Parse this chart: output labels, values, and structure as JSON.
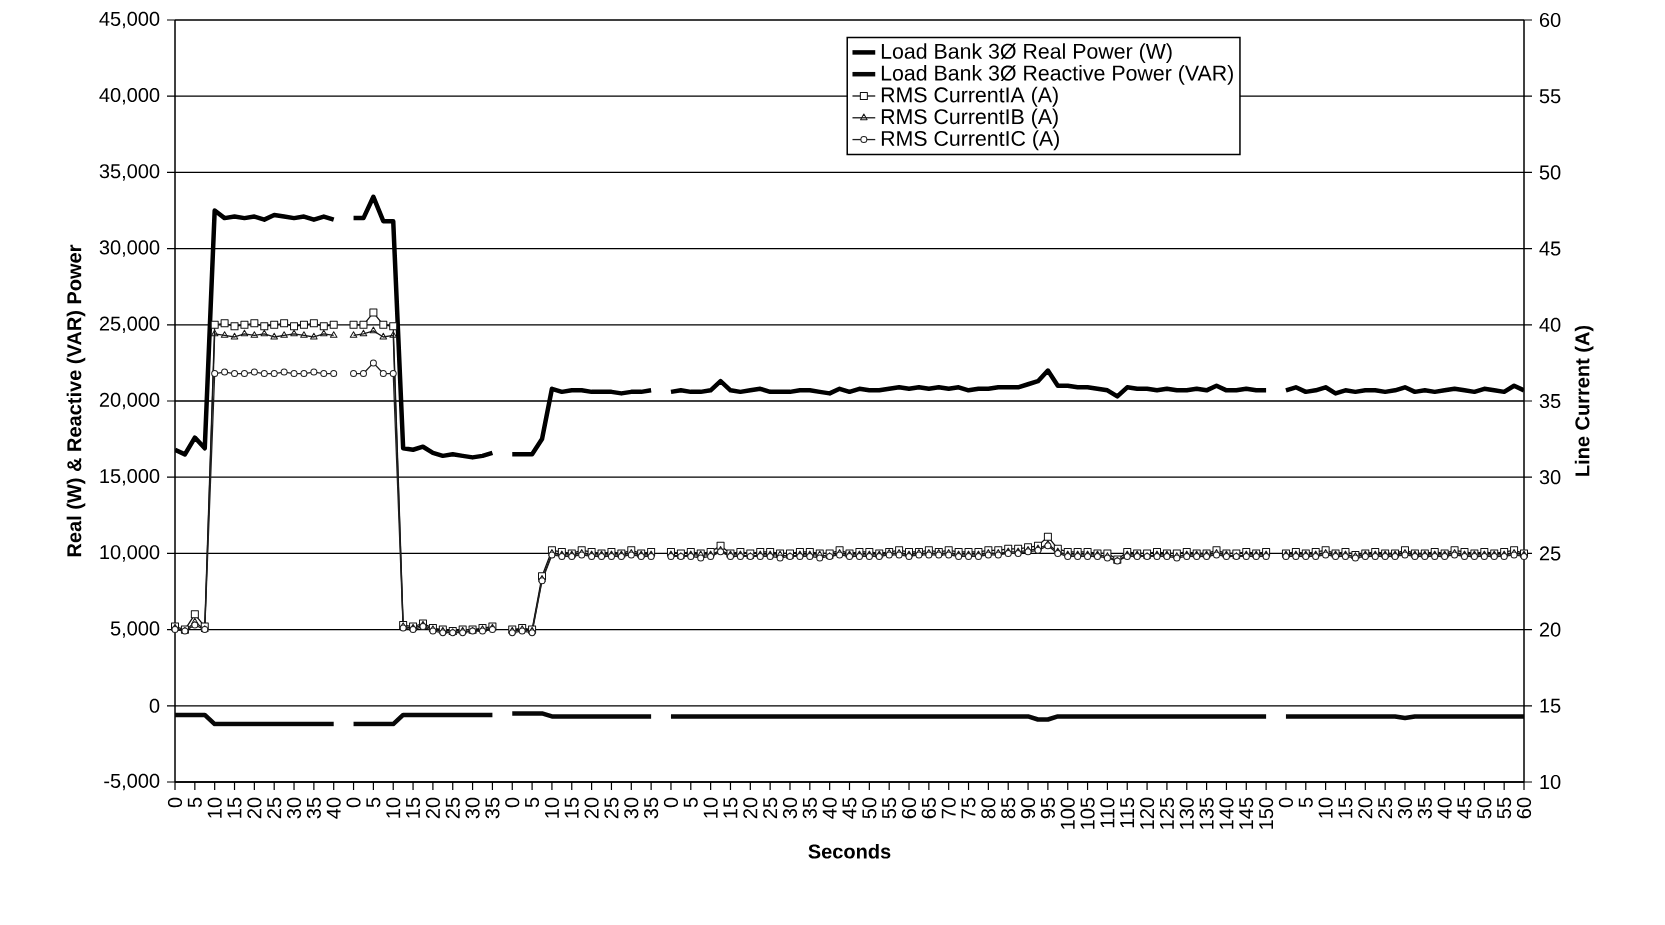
{
  "chart_data": {
    "type": "line",
    "xlabel": "Seconds",
    "ylabel": "Real (W) & Reactive (VAR) Power",
    "y2label": "Line Current (A)",
    "categories": [
      "0",
      null,
      "5",
      null,
      "10",
      null,
      "15",
      null,
      "20",
      null,
      "25",
      null,
      "30",
      null,
      "35",
      null,
      "40",
      null,
      "0",
      null,
      "5",
      null,
      "10",
      null,
      "15",
      null,
      "20",
      null,
      "25",
      null,
      "30",
      null,
      "35",
      null,
      "0",
      null,
      "5",
      null,
      "10",
      null,
      "15",
      null,
      "20",
      null,
      "25",
      null,
      "30",
      null,
      "35",
      null,
      "0",
      null,
      "5",
      null,
      "10",
      null,
      "15",
      null,
      "20",
      null,
      "25",
      null,
      "30",
      null,
      "35",
      null,
      "40",
      null,
      "45",
      null,
      "50",
      null,
      "55",
      null,
      "60",
      null,
      "65",
      null,
      "70",
      null,
      "75",
      null,
      "80",
      null,
      "85",
      null,
      "90",
      null,
      "95",
      null,
      "100",
      null,
      "105",
      null,
      "110",
      null,
      "115",
      null,
      "120",
      null,
      "125",
      null,
      "130",
      null,
      "135",
      null,
      "140",
      null,
      "145",
      null,
      "150",
      null,
      "0",
      null,
      "5",
      null,
      "10",
      null,
      "15",
      null,
      "20",
      null,
      "25",
      null,
      "30",
      null,
      "35",
      null,
      "40",
      null,
      "45",
      null,
      "50",
      null,
      "55",
      null,
      "60"
    ],
    "ylim": [
      -5000,
      45000
    ],
    "yticks": [
      {
        "value": -5000,
        "label": "-5,000"
      },
      0,
      {
        "value": 5000,
        "label": "5,000"
      },
      {
        "value": 10000,
        "label": "10,000"
      },
      {
        "value": 15000,
        "label": "15,000"
      },
      {
        "value": 20000,
        "label": "20,000"
      },
      {
        "value": 25000,
        "label": "25,000"
      },
      {
        "value": 30000,
        "label": "30,000"
      },
      {
        "value": 35000,
        "label": "35,000"
      },
      {
        "value": 40000,
        "label": "40,000"
      },
      {
        "value": 45000,
        "label": "45,000"
      }
    ],
    "y2lim": [
      10,
      60
    ],
    "y2ticks": [
      10,
      15,
      20,
      25,
      30,
      35,
      40,
      45,
      50,
      55,
      60
    ],
    "grid": "y",
    "legend": "top right",
    "series": [
      {
        "name": "Load Bank 3Ø Real Power (W)",
        "color": "#000000",
        "marker": "none",
        "values": [
          16800,
          16500,
          17600,
          16900,
          32500,
          32000,
          32100,
          32000,
          32100,
          31900,
          32200,
          32100,
          32000,
          32100,
          31900,
          32100,
          31900,
          null,
          32000,
          32000,
          33400,
          31800,
          31800,
          16900,
          16800,
          17000,
          16600,
          16400,
          16500,
          16400,
          16300,
          16400,
          16600,
          null,
          16500,
          16500,
          16500,
          17500,
          20800,
          20600,
          20700,
          20700,
          20600,
          20600,
          20600,
          20500,
          20600,
          20600,
          20700,
          null,
          20600,
          20700,
          20600,
          20600,
          20700,
          21300,
          20700,
          20600,
          20700,
          20800,
          20600,
          20600,
          20600,
          20700,
          20700,
          20600,
          20500,
          20800,
          20600,
          20800,
          20700,
          20700,
          20800,
          20900,
          20800,
          20900,
          20800,
          20900,
          20800,
          20900,
          20700,
          20800,
          20800,
          20900,
          20900,
          20900,
          21100,
          21300,
          22000,
          21000,
          21000,
          20900,
          20900,
          20800,
          20700,
          20300,
          20900,
          20800,
          20800,
          20700,
          20800,
          20700,
          20700,
          20800,
          20700,
          21000,
          20700,
          20700,
          20800,
          20700,
          20700,
          null,
          20700,
          20900,
          20600,
          20700,
          20900,
          20500,
          20700,
          20600,
          20700,
          20700,
          20600,
          20700,
          20900,
          20600,
          20700,
          20600,
          20700,
          20800,
          20700,
          20600,
          20800,
          20700,
          20600,
          21000,
          20700
        ]
      },
      {
        "name": "Load Bank 3Ø Reactive Power (VAR)",
        "color": "#080808",
        "marker": "none",
        "values": [
          -600,
          -600,
          -600,
          -600,
          -1200,
          -1200,
          -1200,
          -1200,
          -1200,
          -1200,
          -1200,
          -1200,
          -1200,
          -1200,
          -1200,
          -1200,
          -1200,
          null,
          -1200,
          -1200,
          -1200,
          -1200,
          -1200,
          -600,
          -600,
          -600,
          -600,
          -600,
          -600,
          -600,
          -600,
          -600,
          -600,
          null,
          -500,
          -500,
          -500,
          -500,
          -700,
          -700,
          -700,
          -700,
          -700,
          -700,
          -700,
          -700,
          -700,
          -700,
          -700,
          null,
          -700,
          -700,
          -700,
          -700,
          -700,
          -700,
          -700,
          -700,
          -700,
          -700,
          -700,
          -700,
          -700,
          -700,
          -700,
          -700,
          -700,
          -700,
          -700,
          -700,
          -700,
          -700,
          -700,
          -700,
          -700,
          -700,
          -700,
          -700,
          -700,
          -700,
          -700,
          -700,
          -700,
          -700,
          -700,
          -700,
          -700,
          -900,
          -900,
          -700,
          -700,
          -700,
          -700,
          -700,
          -700,
          -700,
          -700,
          -700,
          -700,
          -700,
          -700,
          -700,
          -700,
          -700,
          -700,
          -700,
          -700,
          -700,
          -700,
          -700,
          -700,
          null,
          -700,
          -700,
          -700,
          -700,
          -700,
          -700,
          -700,
          -700,
          -700,
          -700,
          -700,
          -700,
          -800,
          -700,
          -700,
          -700,
          -700,
          -700,
          -700,
          -700,
          -700,
          -700,
          -700,
          -700,
          -700
        ]
      },
      {
        "name": "RMS CurrentIA (A)",
        "color": "#101010",
        "marker": "square",
        "axis": "y2",
        "values": [
          20.2,
          20.0,
          21.0,
          20.2,
          40.0,
          40.1,
          39.9,
          40.0,
          40.1,
          39.9,
          40.0,
          40.1,
          39.9,
          40.0,
          40.1,
          39.9,
          40.0,
          null,
          40.0,
          40.0,
          40.8,
          40.0,
          39.9,
          20.3,
          20.2,
          20.4,
          20.1,
          20.0,
          19.9,
          20.0,
          20.0,
          20.1,
          20.2,
          null,
          20.0,
          20.1,
          20.0,
          23.5,
          25.2,
          25.1,
          25.0,
          25.2,
          25.1,
          25.0,
          25.1,
          25.0,
          25.2,
          25.0,
          25.1,
          null,
          25.1,
          25.0,
          25.1,
          25.0,
          25.1,
          25.5,
          25.0,
          25.1,
          25.0,
          25.1,
          25.1,
          25.0,
          25.0,
          25.1,
          25.1,
          25.0,
          25.0,
          25.2,
          25.0,
          25.1,
          25.1,
          25.0,
          25.1,
          25.2,
          25.1,
          25.1,
          25.2,
          25.1,
          25.2,
          25.1,
          25.1,
          25.1,
          25.2,
          25.2,
          25.3,
          25.3,
          25.4,
          25.5,
          26.1,
          25.3,
          25.1,
          25.1,
          25.1,
          25.0,
          25.0,
          24.6,
          25.1,
          25.0,
          25.0,
          25.1,
          25.0,
          25.0,
          25.1,
          25.0,
          25.0,
          25.2,
          25.0,
          25.0,
          25.1,
          25.0,
          25.1,
          null,
          25.0,
          25.1,
          25.0,
          25.1,
          25.2,
          25.0,
          25.1,
          24.9,
          25.0,
          25.1,
          25.0,
          25.0,
          25.2,
          25.0,
          25.0,
          25.1,
          25.0,
          25.2,
          25.1,
          25.0,
          25.1,
          25.0,
          25.1,
          25.2,
          25.0
        ]
      },
      {
        "name": "RMS CurrentIB (A)",
        "color": "#181818",
        "marker": "triangle",
        "axis": "y2",
        "values": [
          20.1,
          19.9,
          20.5,
          20.0,
          39.4,
          39.3,
          39.2,
          39.4,
          39.3,
          39.4,
          39.2,
          39.3,
          39.4,
          39.3,
          39.2,
          39.4,
          39.3,
          null,
          39.3,
          39.4,
          39.6,
          39.2,
          39.3,
          20.2,
          20.1,
          20.3,
          20.0,
          19.9,
          19.8,
          19.9,
          19.9,
          20.0,
          20.1,
          null,
          19.9,
          20.0,
          19.9,
          23.3,
          25.0,
          24.9,
          24.9,
          25.0,
          24.9,
          24.9,
          24.9,
          24.9,
          25.0,
          24.9,
          24.9,
          null,
          24.9,
          24.8,
          24.9,
          24.9,
          24.9,
          25.2,
          24.9,
          24.9,
          24.8,
          24.9,
          24.9,
          24.9,
          24.8,
          24.9,
          24.9,
          24.9,
          24.8,
          25.0,
          24.9,
          24.9,
          24.9,
          24.9,
          25.0,
          25.0,
          24.9,
          25.0,
          25.0,
          25.0,
          25.0,
          24.9,
          24.9,
          24.9,
          25.0,
          25.0,
          25.1,
          25.1,
          25.2,
          25.3,
          25.6,
          25.1,
          24.9,
          24.9,
          24.9,
          24.9,
          24.8,
          24.5,
          24.9,
          24.9,
          24.8,
          24.9,
          24.9,
          24.8,
          24.9,
          24.9,
          24.9,
          25.0,
          24.9,
          24.8,
          24.9,
          24.9,
          24.9,
          null,
          24.9,
          24.9,
          24.9,
          24.9,
          25.0,
          24.9,
          24.9,
          24.8,
          24.9,
          24.9,
          24.9,
          24.9,
          25.0,
          24.9,
          24.9,
          24.9,
          24.9,
          25.0,
          24.9,
          24.9,
          24.9,
          24.9,
          24.9,
          25.0,
          24.9
        ]
      },
      {
        "name": "RMS CurrentIC (A)",
        "color": "#202020",
        "marker": "circle",
        "axis": "y2",
        "values": [
          20.0,
          19.9,
          20.3,
          20.0,
          36.8,
          36.9,
          36.8,
          36.8,
          36.9,
          36.8,
          36.8,
          36.9,
          36.8,
          36.8,
          36.9,
          36.8,
          36.8,
          null,
          36.8,
          36.8,
          37.5,
          36.8,
          36.8,
          20.1,
          20.0,
          20.2,
          19.9,
          19.8,
          19.8,
          19.8,
          19.9,
          19.9,
          20.0,
          null,
          19.8,
          19.9,
          19.8,
          23.2,
          24.9,
          24.8,
          24.8,
          24.9,
          24.8,
          24.8,
          24.8,
          24.8,
          24.9,
          24.8,
          24.8,
          null,
          24.8,
          24.8,
          24.8,
          24.7,
          24.8,
          25.1,
          24.8,
          24.8,
          24.8,
          24.8,
          24.8,
          24.7,
          24.8,
          24.8,
          24.8,
          24.7,
          24.8,
          24.9,
          24.8,
          24.8,
          24.8,
          24.8,
          24.9,
          24.9,
          24.8,
          24.9,
          24.9,
          24.9,
          24.9,
          24.8,
          24.8,
          24.8,
          24.9,
          24.9,
          25.0,
          25.0,
          25.1,
          25.2,
          25.5,
          25.0,
          24.8,
          24.8,
          24.8,
          24.8,
          24.7,
          24.5,
          24.8,
          24.8,
          24.8,
          24.8,
          24.8,
          24.7,
          24.8,
          24.8,
          24.8,
          24.9,
          24.8,
          24.8,
          24.8,
          24.8,
          24.8,
          null,
          24.8,
          24.8,
          24.8,
          24.8,
          24.9,
          24.8,
          24.8,
          24.7,
          24.8,
          24.8,
          24.8,
          24.8,
          24.9,
          24.8,
          24.8,
          24.8,
          24.8,
          24.9,
          24.8,
          24.8,
          24.8,
          24.8,
          24.8,
          24.9,
          24.8
        ]
      }
    ]
  }
}
